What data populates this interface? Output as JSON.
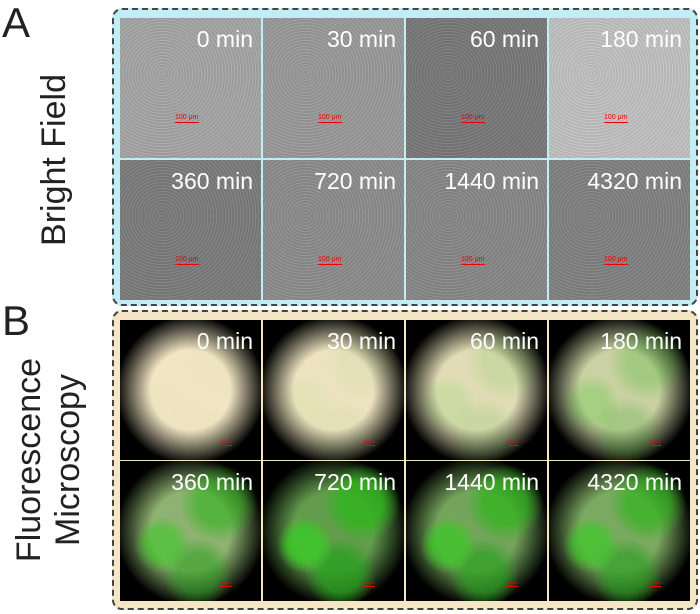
{
  "panel_a": {
    "label": "A",
    "row_label": "Bright Field",
    "tiles": [
      {
        "time": "0 min",
        "scale_bar": "100 μm"
      },
      {
        "time": "30 min",
        "scale_bar": "100 μm"
      },
      {
        "time": "60 min",
        "scale_bar": "100 μm"
      },
      {
        "time": "180 min",
        "scale_bar": "100 μm"
      },
      {
        "time": "360 min",
        "scale_bar": "100 μm"
      },
      {
        "time": "720 min",
        "scale_bar": "100 μm"
      },
      {
        "time": "1440 min",
        "scale_bar": "100 μm"
      },
      {
        "time": "4320 min",
        "scale_bar": "100 μm"
      }
    ]
  },
  "panel_b": {
    "label": "B",
    "row_label_lines": [
      "Fluorescence",
      "Microscopy"
    ],
    "tiles": [
      {
        "time": "0 min",
        "scale_bar": "100μm"
      },
      {
        "time": "30 min",
        "scale_bar": "100μm"
      },
      {
        "time": "60 min",
        "scale_bar": "100μm"
      },
      {
        "time": "180 min",
        "scale_bar": "100μm"
      },
      {
        "time": "360 min",
        "scale_bar": "100μm"
      },
      {
        "time": "720 min",
        "scale_bar": "100μm"
      },
      {
        "time": "1440 min",
        "scale_bar": "100μm"
      },
      {
        "time": "4320 min",
        "scale_bar": "100μm"
      }
    ]
  }
}
